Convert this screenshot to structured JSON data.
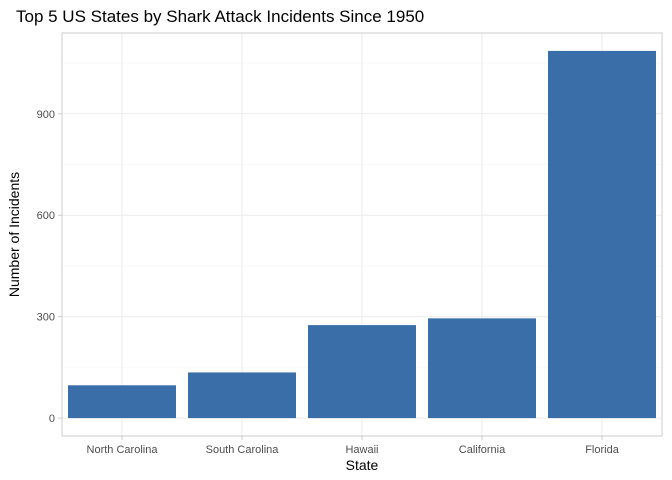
{
  "chart_data": {
    "type": "bar",
    "title": "Top 5 US States by Shark Attack Incidents Since 1950",
    "xlabel": "State",
    "ylabel": "Number of Incidents",
    "categories": [
      "North Carolina",
      "South Carolina",
      "Hawaii",
      "California",
      "Florida"
    ],
    "values": [
      97,
      135,
      275,
      295,
      1086
    ],
    "ylim": [
      -53,
      1139
    ],
    "yticks": [
      0,
      300,
      600,
      900
    ],
    "ytick_labels": [
      "0",
      "300",
      "600",
      "900"
    ],
    "grid": true,
    "legend": "none",
    "colors": {
      "bar": "#3A6EA8",
      "grid_major": "#EBEBEB",
      "grid_minor": "#F5F5F5",
      "panel_border": "#CCCCCC"
    }
  }
}
